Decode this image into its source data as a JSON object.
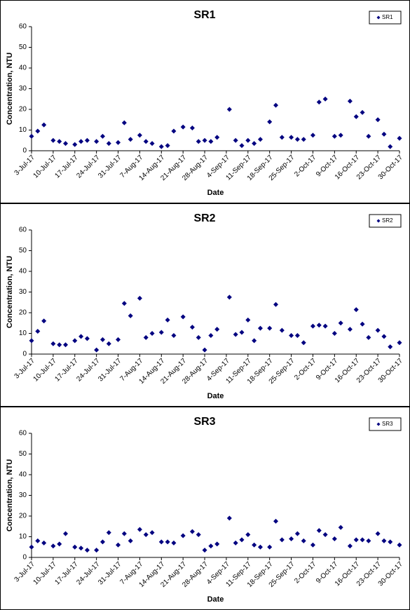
{
  "chart_data": [
    {
      "type": "scatter",
      "title": "SR1",
      "xlabel": "Date",
      "ylabel": "Concentration, NTU",
      "legend": "top-right",
      "x": [
        "3-Jul-17",
        "5-Jul-17",
        "7-Jul-17",
        "10-Jul-17",
        "12-Jul-17",
        "14-Jul-17",
        "17-Jul-17",
        "19-Jul-17",
        "21-Jul-17",
        "24-Jul-17",
        "26-Jul-17",
        "28-Jul-17",
        "31-Jul-17",
        "2-Aug-17",
        "4-Aug-17",
        "7-Aug-17",
        "9-Aug-17",
        "11-Aug-17",
        "14-Aug-17",
        "16-Aug-17",
        "18-Aug-17",
        "21-Aug-17",
        "24-Aug-17",
        "26-Aug-17",
        "28-Aug-17",
        "30-Aug-17",
        "1-Sep-17",
        "5-Sep-17",
        "7-Sep-17",
        "9-Sep-17",
        "11-Sep-17",
        "13-Sep-17",
        "15-Sep-17",
        "18-Sep-17",
        "20-Sep-17",
        "22-Sep-17",
        "25-Sep-17",
        "27-Sep-17",
        "29-Sep-17",
        "2-Oct-17",
        "4-Oct-17",
        "6-Oct-17",
        "9-Oct-17",
        "11-Oct-17",
        "14-Oct-17",
        "16-Oct-17",
        "18-Oct-17",
        "20-Oct-17",
        "23-Oct-17",
        "25-Oct-17",
        "27-Oct-17",
        "30-Oct-17"
      ],
      "series": [
        {
          "name": "SR1",
          "color": "#000080",
          "values": [
            7,
            9.5,
            12.5,
            5,
            4.5,
            3.5,
            3,
            4.5,
            5,
            4.5,
            7,
            3.5,
            4,
            13.5,
            5.5,
            7.5,
            4.5,
            3.5,
            2,
            2.5,
            9.5,
            11.5,
            11,
            4.5,
            5,
            4.5,
            6.5,
            20,
            5,
            2.5,
            5,
            3.5,
            5.5,
            14,
            22,
            6.5,
            6.5,
            5.5,
            5.5,
            7.5,
            23.5,
            25,
            7,
            7.5,
            24,
            16.5,
            18.5,
            7,
            15,
            8,
            2,
            6
          ]
        }
      ],
      "xlim": [
        "3-Jul-17",
        "30-Oct-17"
      ],
      "xticks": [
        "3-Jul-17",
        "10-Jul-17",
        "17-Jul-17",
        "24-Jul-17",
        "31-Jul-17",
        "7-Aug-17",
        "14-Aug-17",
        "21-Aug-17",
        "28-Aug-17",
        "4-Sep-17",
        "11-Sep-17",
        "18-Sep-17",
        "25-Sep-17",
        "2-Oct-17",
        "9-Oct-17",
        "16-Oct-17",
        "23-Oct-17",
        "30-Oct-17"
      ],
      "ylim": [
        0,
        60
      ],
      "yticks": [
        0,
        10,
        20,
        30,
        40,
        50,
        60
      ]
    },
    {
      "type": "scatter",
      "title": "SR2",
      "xlabel": "Date",
      "ylabel": "Concentration, NTU",
      "legend": "top-right",
      "x": [
        "3-Jul-17",
        "5-Jul-17",
        "7-Jul-17",
        "10-Jul-17",
        "12-Jul-17",
        "14-Jul-17",
        "17-Jul-17",
        "19-Jul-17",
        "21-Jul-17",
        "24-Jul-17",
        "26-Jul-17",
        "28-Jul-17",
        "31-Jul-17",
        "2-Aug-17",
        "4-Aug-17",
        "7-Aug-17",
        "9-Aug-17",
        "11-Aug-17",
        "14-Aug-17",
        "16-Aug-17",
        "18-Aug-17",
        "21-Aug-17",
        "24-Aug-17",
        "26-Aug-17",
        "28-Aug-17",
        "30-Aug-17",
        "1-Sep-17",
        "5-Sep-17",
        "7-Sep-17",
        "9-Sep-17",
        "11-Sep-17",
        "13-Sep-17",
        "15-Sep-17",
        "18-Sep-17",
        "20-Sep-17",
        "22-Sep-17",
        "25-Sep-17",
        "27-Sep-17",
        "29-Sep-17",
        "2-Oct-17",
        "4-Oct-17",
        "6-Oct-17",
        "9-Oct-17",
        "11-Oct-17",
        "14-Oct-17",
        "16-Oct-17",
        "18-Oct-17",
        "20-Oct-17",
        "23-Oct-17",
        "25-Oct-17",
        "27-Oct-17",
        "30-Oct-17"
      ],
      "series": [
        {
          "name": "SR2",
          "color": "#000080",
          "values": [
            6.5,
            11,
            16,
            5,
            4.5,
            4.5,
            6.5,
            8.5,
            7.5,
            2,
            7,
            5,
            7,
            24.5,
            18.5,
            27,
            8,
            10,
            10.5,
            16.5,
            9,
            18,
            13,
            8,
            2,
            9,
            12,
            27.5,
            9.5,
            10.5,
            16.5,
            6.5,
            12.5,
            12.5,
            24,
            11.5,
            9,
            9,
            5.5,
            13.5,
            14,
            13.5,
            10,
            15,
            12,
            21.5,
            14.5,
            8,
            11.5,
            8.5,
            3.5,
            5.5
          ]
        }
      ],
      "xlim": [
        "3-Jul-17",
        "30-Oct-17"
      ],
      "xticks": [
        "3-Jul-17",
        "10-Jul-17",
        "17-Jul-17",
        "24-Jul-17",
        "31-Jul-17",
        "7-Aug-17",
        "14-Aug-17",
        "21-Aug-17",
        "28-Aug-17",
        "4-Sep-17",
        "11-Sep-17",
        "18-Sep-17",
        "25-Sep-17",
        "2-Oct-17",
        "9-Oct-17",
        "16-Oct-17",
        "23-Oct-17",
        "30-Oct-17"
      ],
      "ylim": [
        0,
        60
      ],
      "yticks": [
        0,
        10,
        20,
        30,
        40,
        50,
        60
      ]
    },
    {
      "type": "scatter",
      "title": "SR3",
      "xlabel": "Date",
      "ylabel": "Concentration, NTU",
      "legend": "top-right",
      "x": [
        "3-Jul-17",
        "5-Jul-17",
        "7-Jul-17",
        "10-Jul-17",
        "12-Jul-17",
        "14-Jul-17",
        "17-Jul-17",
        "19-Jul-17",
        "21-Jul-17",
        "24-Jul-17",
        "26-Jul-17",
        "28-Jul-17",
        "31-Jul-17",
        "2-Aug-17",
        "4-Aug-17",
        "7-Aug-17",
        "9-Aug-17",
        "11-Aug-17",
        "14-Aug-17",
        "16-Aug-17",
        "18-Aug-17",
        "21-Aug-17",
        "24-Aug-17",
        "26-Aug-17",
        "28-Aug-17",
        "30-Aug-17",
        "1-Sep-17",
        "5-Sep-17",
        "7-Sep-17",
        "9-Sep-17",
        "11-Sep-17",
        "13-Sep-17",
        "15-Sep-17",
        "18-Sep-17",
        "20-Sep-17",
        "22-Sep-17",
        "25-Sep-17",
        "27-Sep-17",
        "29-Sep-17",
        "2-Oct-17",
        "4-Oct-17",
        "6-Oct-17",
        "9-Oct-17",
        "11-Oct-17",
        "14-Oct-17",
        "16-Oct-17",
        "18-Oct-17",
        "20-Oct-17",
        "23-Oct-17",
        "25-Oct-17",
        "27-Oct-17",
        "30-Oct-17"
      ],
      "series": [
        {
          "name": "SR3",
          "color": "#000080",
          "values": [
            5,
            8,
            7,
            5.5,
            6.5,
            11.5,
            5,
            4.5,
            3.5,
            3.5,
            7.5,
            12,
            6,
            11.5,
            8,
            13.5,
            11,
            12,
            7.5,
            7.5,
            7,
            10.5,
            12.5,
            11,
            3.5,
            5.5,
            6.5,
            19,
            7,
            8.5,
            11,
            6,
            5,
            5,
            17.5,
            8.5,
            9,
            11.5,
            8,
            6,
            13,
            11,
            9,
            14.5,
            5.5,
            8.5,
            8.5,
            8,
            11.5,
            8,
            7.5,
            6
          ]
        }
      ],
      "xlim": [
        "3-Jul-17",
        "30-Oct-17"
      ],
      "xticks": [
        "3-Jul-17",
        "10-Jul-17",
        "17-Jul-17",
        "24-Jul-17",
        "31-Jul-17",
        "7-Aug-17",
        "14-Aug-17",
        "21-Aug-17",
        "28-Aug-17",
        "4-Sep-17",
        "11-Sep-17",
        "18-Sep-17",
        "25-Sep-17",
        "2-Oct-17",
        "9-Oct-17",
        "16-Oct-17",
        "23-Oct-17",
        "30-Oct-17"
      ],
      "ylim": [
        0,
        60
      ],
      "yticks": [
        0,
        10,
        20,
        30,
        40,
        50,
        60
      ]
    }
  ]
}
